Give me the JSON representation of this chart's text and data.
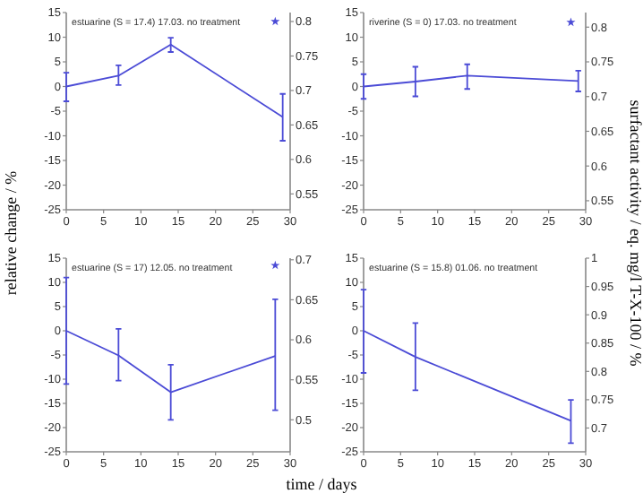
{
  "chart_data": [
    {
      "type": "line",
      "title": "estuarine (S = 17.4) 17.03. no treatment",
      "ylabel": "relative change / %",
      "xlim": [
        0,
        30
      ],
      "xticks": [
        0,
        5,
        10,
        15,
        20,
        25,
        30
      ],
      "ylim": [
        -25,
        15
      ],
      "yticks": [
        -25,
        -20,
        -15,
        -10,
        -5,
        0,
        5,
        10,
        15
      ],
      "y2lim": [
        0.527,
        0.813
      ],
      "y2ticks": [
        0.55,
        0.6,
        0.65,
        0.7,
        0.75,
        0.8
      ],
      "grid": false,
      "series": [
        {
          "color": "#4b4bd6",
          "x": [
            0,
            7,
            14,
            29
          ],
          "values": [
            0,
            2.2,
            8.5,
            -6.2
          ],
          "errors": [
            [
              -3,
              2.8
            ],
            [
              0.3,
              4.3
            ],
            [
              7,
              9.9
            ],
            [
              -11,
              -1.5
            ]
          ],
          "marker": "none"
        },
        {
          "type": "scatter",
          "axis": "y2",
          "color": "#4b4bd6",
          "x": [
            28
          ],
          "values": [
            0.8
          ],
          "marker": "star"
        }
      ]
    },
    {
      "type": "line",
      "title": "riverine (S = 0) 17.03. no treatment",
      "y2label": "surfactant activity / eq. mg/l T-X-100 / %",
      "xlim": [
        0,
        30
      ],
      "xticks": [
        0,
        5,
        10,
        15,
        20,
        25,
        30
      ],
      "ylim": [
        -25,
        15
      ],
      "yticks": [
        -25,
        -20,
        -15,
        -10,
        -5,
        0,
        5,
        10,
        15
      ],
      "y2lim": [
        0.537,
        0.821
      ],
      "y2ticks": [
        0.55,
        0.6,
        0.65,
        0.7,
        0.75,
        0.8
      ],
      "grid": false,
      "series": [
        {
          "color": "#4b4bd6",
          "x": [
            0,
            7,
            14,
            29
          ],
          "values": [
            0,
            1,
            2.2,
            1.1
          ],
          "errors": [
            [
              -2.5,
              2.5
            ],
            [
              -2,
              4
            ],
            [
              -0.5,
              4.5
            ],
            [
              -1,
              3.2
            ]
          ],
          "marker": "none"
        },
        {
          "type": "scatter",
          "axis": "y2",
          "color": "#4b4bd6",
          "x": [
            28
          ],
          "values": [
            0.807
          ],
          "marker": "star"
        }
      ]
    },
    {
      "type": "line",
      "title": "estuarine (S = 17) 12.05. no treatment",
      "xlabel": "time / days",
      "xlim": [
        0,
        30
      ],
      "xticks": [
        0,
        5,
        10,
        15,
        20,
        25,
        30
      ],
      "ylim": [
        -25,
        15
      ],
      "yticks": [
        -25,
        -20,
        -15,
        -10,
        -5,
        0,
        5,
        10,
        15
      ],
      "y2lim": [
        0.46,
        0.702
      ],
      "y2ticks": [
        0.5,
        0.55,
        0.6,
        0.65,
        0.7
      ],
      "grid": false,
      "series": [
        {
          "color": "#4b4bd6",
          "x": [
            0,
            7,
            14,
            28
          ],
          "values": [
            0,
            -5.1,
            -12.7,
            -5.2
          ],
          "errors": [
            [
              -11,
              11
            ],
            [
              -10.3,
              0.4
            ],
            [
              -18.4,
              -7
            ],
            [
              -16.4,
              6.5
            ]
          ],
          "marker": "none"
        },
        {
          "type": "scatter",
          "axis": "y2",
          "color": "#4b4bd6",
          "x": [
            28
          ],
          "values": [
            0.693
          ],
          "marker": "star"
        }
      ]
    },
    {
      "type": "line",
      "title": "estuarine (S = 15.8) 01.06. no treatment",
      "xlim": [
        0,
        30
      ],
      "xticks": [
        0,
        5,
        10,
        15,
        20,
        25,
        30
      ],
      "ylim": [
        -25,
        15
      ],
      "yticks": [
        -25,
        -20,
        -15,
        -10,
        -5,
        0,
        5,
        10,
        15
      ],
      "y2lim": [
        0.658,
        1
      ],
      "y2ticks": [
        0.7,
        0.75,
        0.8,
        0.85,
        0.9,
        0.95,
        1
      ],
      "grid": false,
      "series": [
        {
          "color": "#4b4bd6",
          "x": [
            0,
            7,
            28
          ],
          "values": [
            0,
            -5.4,
            -18.6
          ],
          "errors": [
            [
              -8.7,
              8.5
            ],
            [
              -12.3,
              1.6
            ],
            [
              -23.2,
              -14.3
            ]
          ],
          "marker": "none"
        }
      ]
    }
  ]
}
